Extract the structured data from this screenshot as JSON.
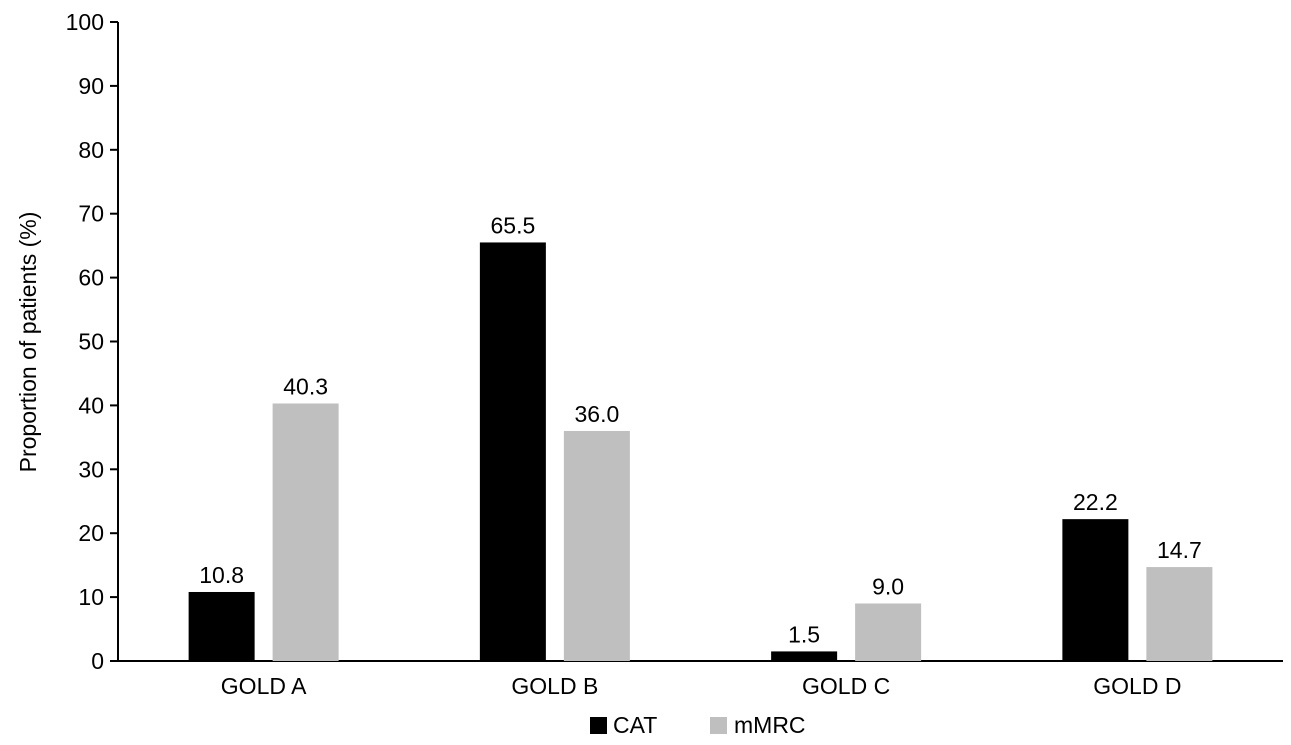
{
  "chart_data": {
    "type": "bar",
    "categories": [
      "GOLD A",
      "GOLD B",
      "GOLD C",
      "GOLD D"
    ],
    "series": [
      {
        "name": "CAT",
        "color": "#000000",
        "values": [
          10.8,
          65.5,
          1.5,
          22.2
        ],
        "labels": [
          "10.8",
          "65.5",
          "1.5",
          "22.2"
        ]
      },
      {
        "name": "mMRC",
        "color": "#bfbfbf",
        "values": [
          40.3,
          36.0,
          9.0,
          14.7
        ],
        "labels": [
          "40.3",
          "36.0",
          "9.0",
          "14.7"
        ]
      }
    ],
    "title": "",
    "xlabel": "",
    "ylabel": "Proportion of patients (%)",
    "ylim": [
      0,
      100
    ],
    "yticks": [
      0,
      10,
      20,
      30,
      40,
      50,
      60,
      70,
      80,
      90,
      100
    ],
    "grid": false,
    "legend_position": "bottom-center"
  }
}
